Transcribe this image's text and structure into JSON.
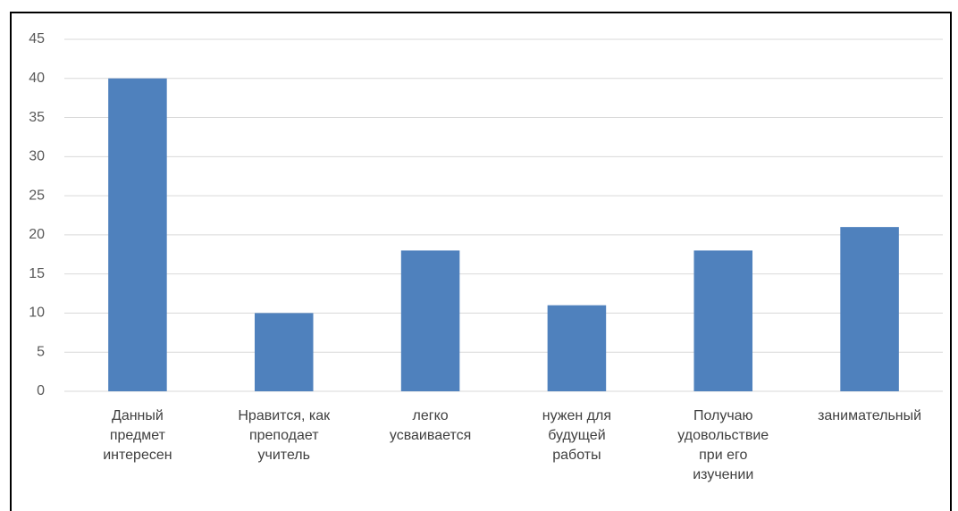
{
  "chart_data": {
    "type": "bar",
    "categories": [
      "Данный предмет интересен",
      "Нравится, как преподает учитель",
      "легко усваивается",
      "нужен для будущей работы",
      "Получаю удовольствие при его изучении",
      "занимательный"
    ],
    "values": [
      40,
      10,
      18,
      11,
      18,
      21
    ],
    "color": "#4f81bd",
    "ylim": [
      0,
      45
    ],
    "yticks": [
      0,
      5,
      10,
      15,
      20,
      25,
      30,
      35,
      40,
      45
    ],
    "grid": true
  }
}
